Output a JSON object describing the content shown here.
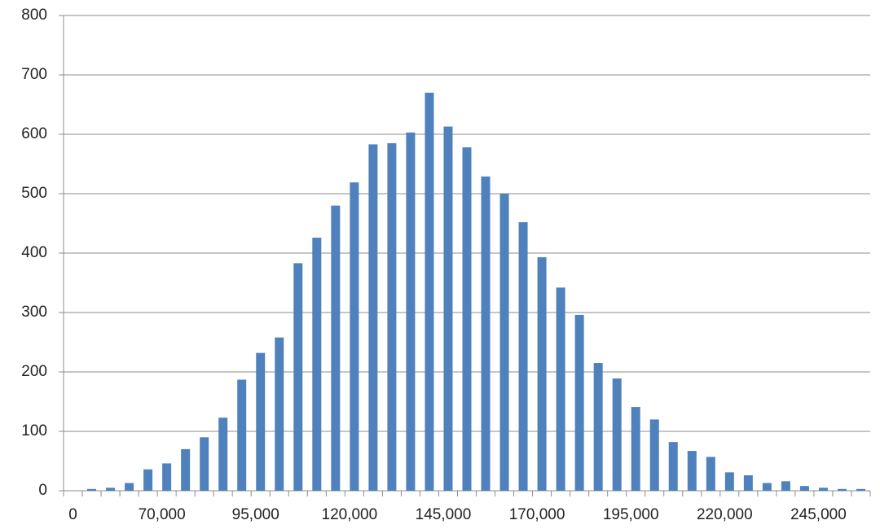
{
  "chart_data": {
    "type": "bar",
    "categories": [
      "0",
      null,
      null,
      null,
      null,
      "70,000",
      null,
      null,
      null,
      null,
      "95,000",
      null,
      null,
      null,
      null,
      "120,000",
      null,
      null,
      null,
      null,
      "145,000",
      null,
      null,
      null,
      null,
      "170,000",
      null,
      null,
      null,
      null,
      "195,000",
      null,
      null,
      null,
      null,
      "220,000",
      null,
      null,
      null,
      null,
      "245,000",
      null,
      null
    ],
    "values": [
      0,
      3,
      5,
      13,
      36,
      46,
      70,
      90,
      123,
      187,
      232,
      258,
      383,
      426,
      480,
      519,
      583,
      585,
      603,
      670,
      613,
      578,
      529,
      500,
      452,
      393,
      342,
      296,
      215,
      189,
      141,
      120,
      82,
      67,
      57,
      31,
      26,
      13,
      16,
      8,
      5,
      3,
      3
    ],
    "color": "#4f81bd",
    "ylim": [
      0,
      800
    ],
    "yticks": [
      0,
      100,
      200,
      300,
      400,
      500,
      600,
      700,
      800
    ],
    "grid": true
  }
}
